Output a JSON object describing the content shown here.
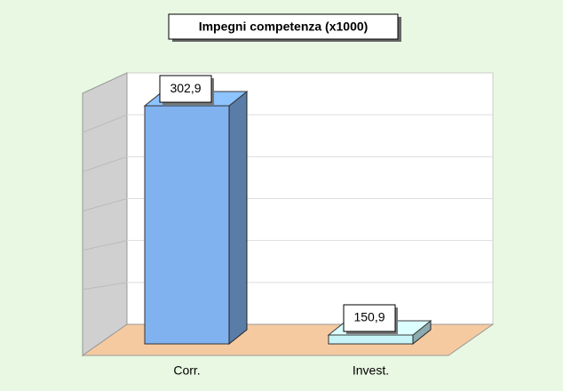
{
  "chart_data": {
    "type": "bar3d",
    "title": "Impegni competenza (x1000)",
    "categories": [
      "Corr.",
      "Invest."
    ],
    "values": [
      302.9,
      150.9
    ],
    "value_labels": [
      "302,9",
      "150,9"
    ],
    "colors": [
      "#80b2f0",
      "#c8f4f8"
    ],
    "ylim": [
      145,
      310
    ],
    "grid": true
  }
}
